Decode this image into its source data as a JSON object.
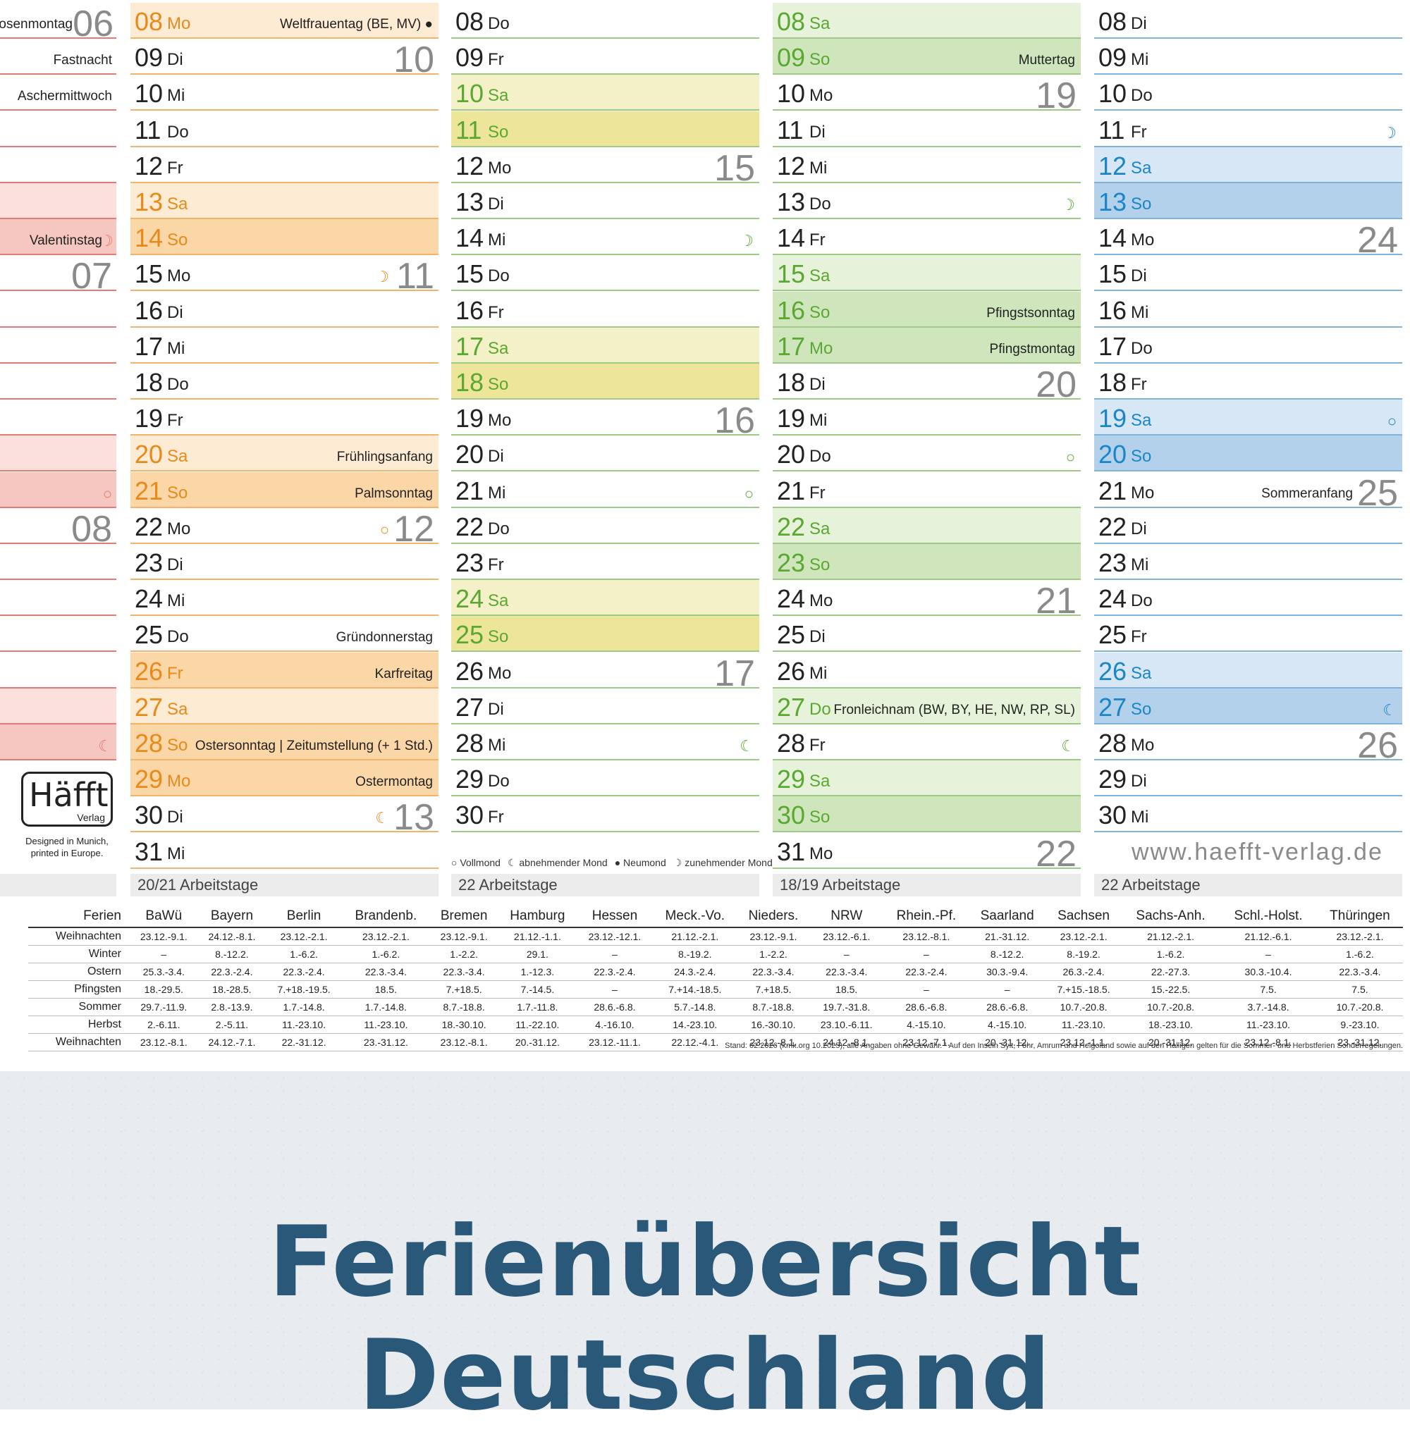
{
  "banner": "Ferienübersicht Deutschland",
  "left_labels": [
    {
      "text": "Rosenmontag",
      "wk": "06",
      "bg": "#ffffff"
    },
    {
      "text": "Fastnacht",
      "bg": "#ffffff"
    },
    {
      "text": "Aschermittwoch",
      "bg": "#ffffff"
    },
    {
      "text": "",
      "bg": "#ffffff"
    },
    {
      "text": "",
      "bg": "#ffffff"
    },
    {
      "text": "",
      "bg": "#fbe0dd"
    },
    {
      "text": "Valentinstag",
      "moon": "☽",
      "bg": "#f6c6c0"
    },
    {
      "text": "",
      "wk": "07",
      "bg": "#ffffff"
    },
    {
      "text": "",
      "bg": "#ffffff"
    },
    {
      "text": "",
      "bg": "#ffffff"
    },
    {
      "text": "",
      "bg": "#ffffff"
    },
    {
      "text": "",
      "bg": "#ffffff"
    },
    {
      "text": "",
      "bg": "#fbe0dd"
    },
    {
      "text": "",
      "moon": "○",
      "bg": "#f6c6c0"
    },
    {
      "text": "",
      "wk": "08",
      "bg": "#ffffff"
    },
    {
      "text": "",
      "bg": "#ffffff"
    },
    {
      "text": "",
      "bg": "#ffffff"
    },
    {
      "text": "",
      "bg": "#ffffff"
    },
    {
      "text": "",
      "bg": "#ffffff"
    },
    {
      "text": "",
      "bg": "#fbe0dd"
    },
    {
      "text": "",
      "moon": "☾",
      "bg": "#f6c6c0"
    }
  ],
  "columns": [
    {
      "line": "#f2b36b",
      "num_sat": "#e88a1a",
      "bg_sat": "#fdebd4",
      "bg_sun": "#fbd7a8",
      "summary": "20/21 Arbeitstage",
      "days": [
        {
          "d": "08",
          "w": "Mo",
          "t": "hol",
          "h": "Weltfrauentag (BE, MV) ●"
        },
        {
          "d": "09",
          "w": "Di",
          "k": "10"
        },
        {
          "d": "10",
          "w": "Mi"
        },
        {
          "d": "11",
          "w": "Do"
        },
        {
          "d": "12",
          "w": "Fr"
        },
        {
          "d": "13",
          "w": "Sa",
          "t": "sat"
        },
        {
          "d": "14",
          "w": "So",
          "t": "sun"
        },
        {
          "d": "15",
          "w": "Mo",
          "k": "11",
          "m": "☽"
        },
        {
          "d": "16",
          "w": "Di"
        },
        {
          "d": "17",
          "w": "Mi"
        },
        {
          "d": "18",
          "w": "Do"
        },
        {
          "d": "19",
          "w": "Fr"
        },
        {
          "d": "20",
          "w": "Sa",
          "t": "sat",
          "h": "Frühlingsanfang"
        },
        {
          "d": "21",
          "w": "So",
          "t": "sun",
          "h": "Palmsonntag"
        },
        {
          "d": "22",
          "w": "Mo",
          "k": "12",
          "m": "○"
        },
        {
          "d": "23",
          "w": "Di"
        },
        {
          "d": "24",
          "w": "Mi"
        },
        {
          "d": "25",
          "w": "Do",
          "h": "Gründonnerstag"
        },
        {
          "d": "26",
          "w": "Fr",
          "t": "sun",
          "h": "Karfreitag"
        },
        {
          "d": "27",
          "w": "Sa",
          "t": "sat"
        },
        {
          "d": "28",
          "w": "So",
          "t": "sun",
          "h": "Ostersonntag | Zeitumstellung (+ 1 Std.)"
        },
        {
          "d": "29",
          "w": "Mo",
          "t": "sun",
          "h": "Ostermontag"
        },
        {
          "d": "30",
          "w": "Di",
          "k": "13",
          "m": "☾"
        },
        {
          "d": "31",
          "w": "Mi"
        }
      ]
    },
    {
      "line": "#9fc987",
      "num_sat": "#5aa832",
      "bg_sat": "#f4f1c8",
      "bg_sun": "#ede69a",
      "summary": "22 Arbeitstage",
      "days": [
        {
          "d": "08",
          "w": "Do"
        },
        {
          "d": "09",
          "w": "Fr"
        },
        {
          "d": "10",
          "w": "Sa",
          "t": "sat"
        },
        {
          "d": "11",
          "w": "So",
          "t": "sun"
        },
        {
          "d": "12",
          "w": "Mo",
          "k": "15"
        },
        {
          "d": "13",
          "w": "Di"
        },
        {
          "d": "14",
          "w": "Mi",
          "m": "☽"
        },
        {
          "d": "15",
          "w": "Do"
        },
        {
          "d": "16",
          "w": "Fr"
        },
        {
          "d": "17",
          "w": "Sa",
          "t": "sat"
        },
        {
          "d": "18",
          "w": "So",
          "t": "sun"
        },
        {
          "d": "19",
          "w": "Mo",
          "k": "16"
        },
        {
          "d": "20",
          "w": "Di"
        },
        {
          "d": "21",
          "w": "Mi",
          "m": "○"
        },
        {
          "d": "22",
          "w": "Do"
        },
        {
          "d": "23",
          "w": "Fr"
        },
        {
          "d": "24",
          "w": "Sa",
          "t": "sat"
        },
        {
          "d": "25",
          "w": "So",
          "t": "sun"
        },
        {
          "d": "26",
          "w": "Mo",
          "k": "17"
        },
        {
          "d": "27",
          "w": "Di"
        },
        {
          "d": "28",
          "w": "Mi",
          "m": "☾"
        },
        {
          "d": "29",
          "w": "Do"
        },
        {
          "d": "30",
          "w": "Fr"
        }
      ]
    },
    {
      "line": "#9fc987",
      "num_sat": "#5aa832",
      "bg_sat": "#e6f2d9",
      "bg_sun": "#cfe6bd",
      "summary": "18/19 Arbeitstage",
      "days": [
        {
          "d": "08",
          "w": "Sa",
          "t": "sat"
        },
        {
          "d": "09",
          "w": "So",
          "t": "sun",
          "h": "Muttertag"
        },
        {
          "d": "10",
          "w": "Mo",
          "k": "19"
        },
        {
          "d": "11",
          "w": "Di"
        },
        {
          "d": "12",
          "w": "Mi"
        },
        {
          "d": "13",
          "w": "Do",
          "m": "☽"
        },
        {
          "d": "14",
          "w": "Fr"
        },
        {
          "d": "15",
          "w": "Sa",
          "t": "sat"
        },
        {
          "d": "16",
          "w": "So",
          "t": "sun",
          "h": "Pfingstsonntag"
        },
        {
          "d": "17",
          "w": "Mo",
          "t": "sun",
          "h": "Pfingstmontag"
        },
        {
          "d": "18",
          "w": "Di",
          "k": "20"
        },
        {
          "d": "19",
          "w": "Mi"
        },
        {
          "d": "20",
          "w": "Do",
          "m": "○"
        },
        {
          "d": "21",
          "w": "Fr"
        },
        {
          "d": "22",
          "w": "Sa",
          "t": "sat"
        },
        {
          "d": "23",
          "w": "So",
          "t": "sun"
        },
        {
          "d": "24",
          "w": "Mo",
          "k": "21"
        },
        {
          "d": "25",
          "w": "Di"
        },
        {
          "d": "26",
          "w": "Mi"
        },
        {
          "d": "27",
          "w": "Do",
          "t": "sat",
          "h": "Fronleichnam (BW, BY, HE, NW, RP, SL)"
        },
        {
          "d": "28",
          "w": "Fr",
          "m": "☾"
        },
        {
          "d": "29",
          "w": "Sa",
          "t": "sat"
        },
        {
          "d": "30",
          "w": "So",
          "t": "sun"
        },
        {
          "d": "31",
          "w": "Mo",
          "k": "22"
        }
      ]
    },
    {
      "line": "#7fb3d9",
      "num_sat": "#1a86c8",
      "bg_sat": "#d8e7f5",
      "bg_sun": "#b3d1ea",
      "summary": "22 Arbeitstage",
      "days": [
        {
          "d": "08",
          "w": "Di"
        },
        {
          "d": "09",
          "w": "Mi"
        },
        {
          "d": "10",
          "w": "Do"
        },
        {
          "d": "11",
          "w": "Fr",
          "m": "☽"
        },
        {
          "d": "12",
          "w": "Sa",
          "t": "sat"
        },
        {
          "d": "13",
          "w": "So",
          "t": "sun"
        },
        {
          "d": "14",
          "w": "Mo",
          "k": "24"
        },
        {
          "d": "15",
          "w": "Di"
        },
        {
          "d": "16",
          "w": "Mi"
        },
        {
          "d": "17",
          "w": "Do"
        },
        {
          "d": "18",
          "w": "Fr"
        },
        {
          "d": "19",
          "w": "Sa",
          "t": "sat",
          "m": "○"
        },
        {
          "d": "20",
          "w": "So",
          "t": "sun"
        },
        {
          "d": "21",
          "w": "Mo",
          "k": "25",
          "h": "Sommeranfang"
        },
        {
          "d": "22",
          "w": "Di"
        },
        {
          "d": "23",
          "w": "Mi"
        },
        {
          "d": "24",
          "w": "Do"
        },
        {
          "d": "25",
          "w": "Fr"
        },
        {
          "d": "26",
          "w": "Sa",
          "t": "sat"
        },
        {
          "d": "27",
          "w": "So",
          "t": "sun",
          "m": "☾"
        },
        {
          "d": "28",
          "w": "Mo",
          "k": "26"
        },
        {
          "d": "29",
          "w": "Di"
        },
        {
          "d": "30",
          "w": "Mi"
        }
      ]
    }
  ],
  "legend": [
    "○ Vollmond",
    "☾ abnehmender Mond",
    "● Neumond",
    "☽ zunehmender Mond"
  ],
  "logo": {
    "name": "Häfft",
    "sub": "Verlag"
  },
  "designed": "Designed in Munich, printed in Europe.",
  "url": "www.haefft-verlag.de",
  "ferien": {
    "headers": [
      "Ferien",
      "BaWü",
      "Bayern",
      "Berlin",
      "Brandenb.",
      "Bremen",
      "Hamburg",
      "Hessen",
      "Meck.-Vo.",
      "Nieders.",
      "NRW",
      "Rhein.-Pf.",
      "Saarland",
      "Sachsen",
      "Sachs-Anh.",
      "Schl.-Holst.",
      "Thüringen"
    ],
    "rows": [
      [
        "Weihnachten",
        "23.12.-9.1.",
        "24.12.-8.1.",
        "23.12.-2.1.",
        "23.12.-2.1.",
        "23.12.-9.1.",
        "21.12.-1.1.",
        "23.12.-12.1.",
        "21.12.-2.1.",
        "23.12.-9.1.",
        "23.12.-6.1.",
        "23.12.-8.1.",
        "21.-31.12.",
        "23.12.-2.1.",
        "21.12.-2.1.",
        "21.12.-6.1.",
        "23.12.-2.1."
      ],
      [
        "Winter",
        "–",
        "8.-12.2.",
        "1.-6.2.",
        "1.-6.2.",
        "1.-2.2.",
        "29.1.",
        "–",
        "8.-19.2.",
        "1.-2.2.",
        "–",
        "–",
        "8.-12.2.",
        "8.-19.2.",
        "1.-6.2.",
        "–",
        "1.-6.2."
      ],
      [
        "Ostern",
        "25.3.-3.4.",
        "22.3.-2.4.",
        "22.3.-2.4.",
        "22.3.-3.4.",
        "22.3.-3.4.",
        "1.-12.3.",
        "22.3.-2.4.",
        "24.3.-2.4.",
        "22.3.-3.4.",
        "22.3.-3.4.",
        "22.3.-2.4.",
        "30.3.-9.4.",
        "26.3.-2.4.",
        "22.-27.3.",
        "30.3.-10.4.",
        "22.3.-3.4."
      ],
      [
        "Pfingsten",
        "18.-29.5.",
        "18.-28.5.",
        "7.+18.-19.5.",
        "18.5.",
        "7.+18.5.",
        "7.-14.5.",
        "–",
        "7.+14.-18.5.",
        "7.+18.5.",
        "18.5.",
        "–",
        "–",
        "7.+15.-18.5.",
        "15.-22.5.",
        "7.5.",
        "7.5."
      ],
      [
        "Sommer",
        "29.7.-11.9.",
        "2.8.-13.9.",
        "1.7.-14.8.",
        "1.7.-14.8.",
        "8.7.-18.8.",
        "1.7.-11.8.",
        "28.6.-6.8.",
        "5.7.-14.8.",
        "8.7.-18.8.",
        "19.7.-31.8.",
        "28.6.-6.8.",
        "28.6.-6.8.",
        "10.7.-20.8.",
        "10.7.-20.8.",
        "3.7.-14.8.",
        "10.7.-20.8."
      ],
      [
        "Herbst",
        "2.-6.11.",
        "2.-5.11.",
        "11.-23.10.",
        "11.-23.10.",
        "18.-30.10.",
        "11.-22.10.",
        "4.-16.10.",
        "14.-23.10.",
        "16.-30.10.",
        "23.10.-6.11.",
        "4.-15.10.",
        "4.-15.10.",
        "11.-23.10.",
        "18.-23.10.",
        "11.-23.10.",
        "9.-23.10."
      ],
      [
        "Weihnachten",
        "23.12.-8.1.",
        "24.12.-7.1.",
        "22.-31.12.",
        "23.-31.12.",
        "23.12.-8.1.",
        "20.-31.12.",
        "23.12.-11.1.",
        "22.12.-4.1.",
        "23.12.-8.1.",
        "24.12.-8.1.",
        "23.12.-7.1.",
        "20.-31.12.",
        "23.12.-1.1.",
        "20.-31.12.",
        "23.12.-8.1.",
        "23.-31.12."
      ]
    ]
  },
  "stand": "Stand: 02.2026 (kmk.org 10.2025); alle Angaben ohne Gewähr. ¹ Auf den Inseln Sylt, Föhr, Amrum und Helgoland sowie auf den Halligen gelten für die Sommer- und Herbstferien Sonderregelungen."
}
